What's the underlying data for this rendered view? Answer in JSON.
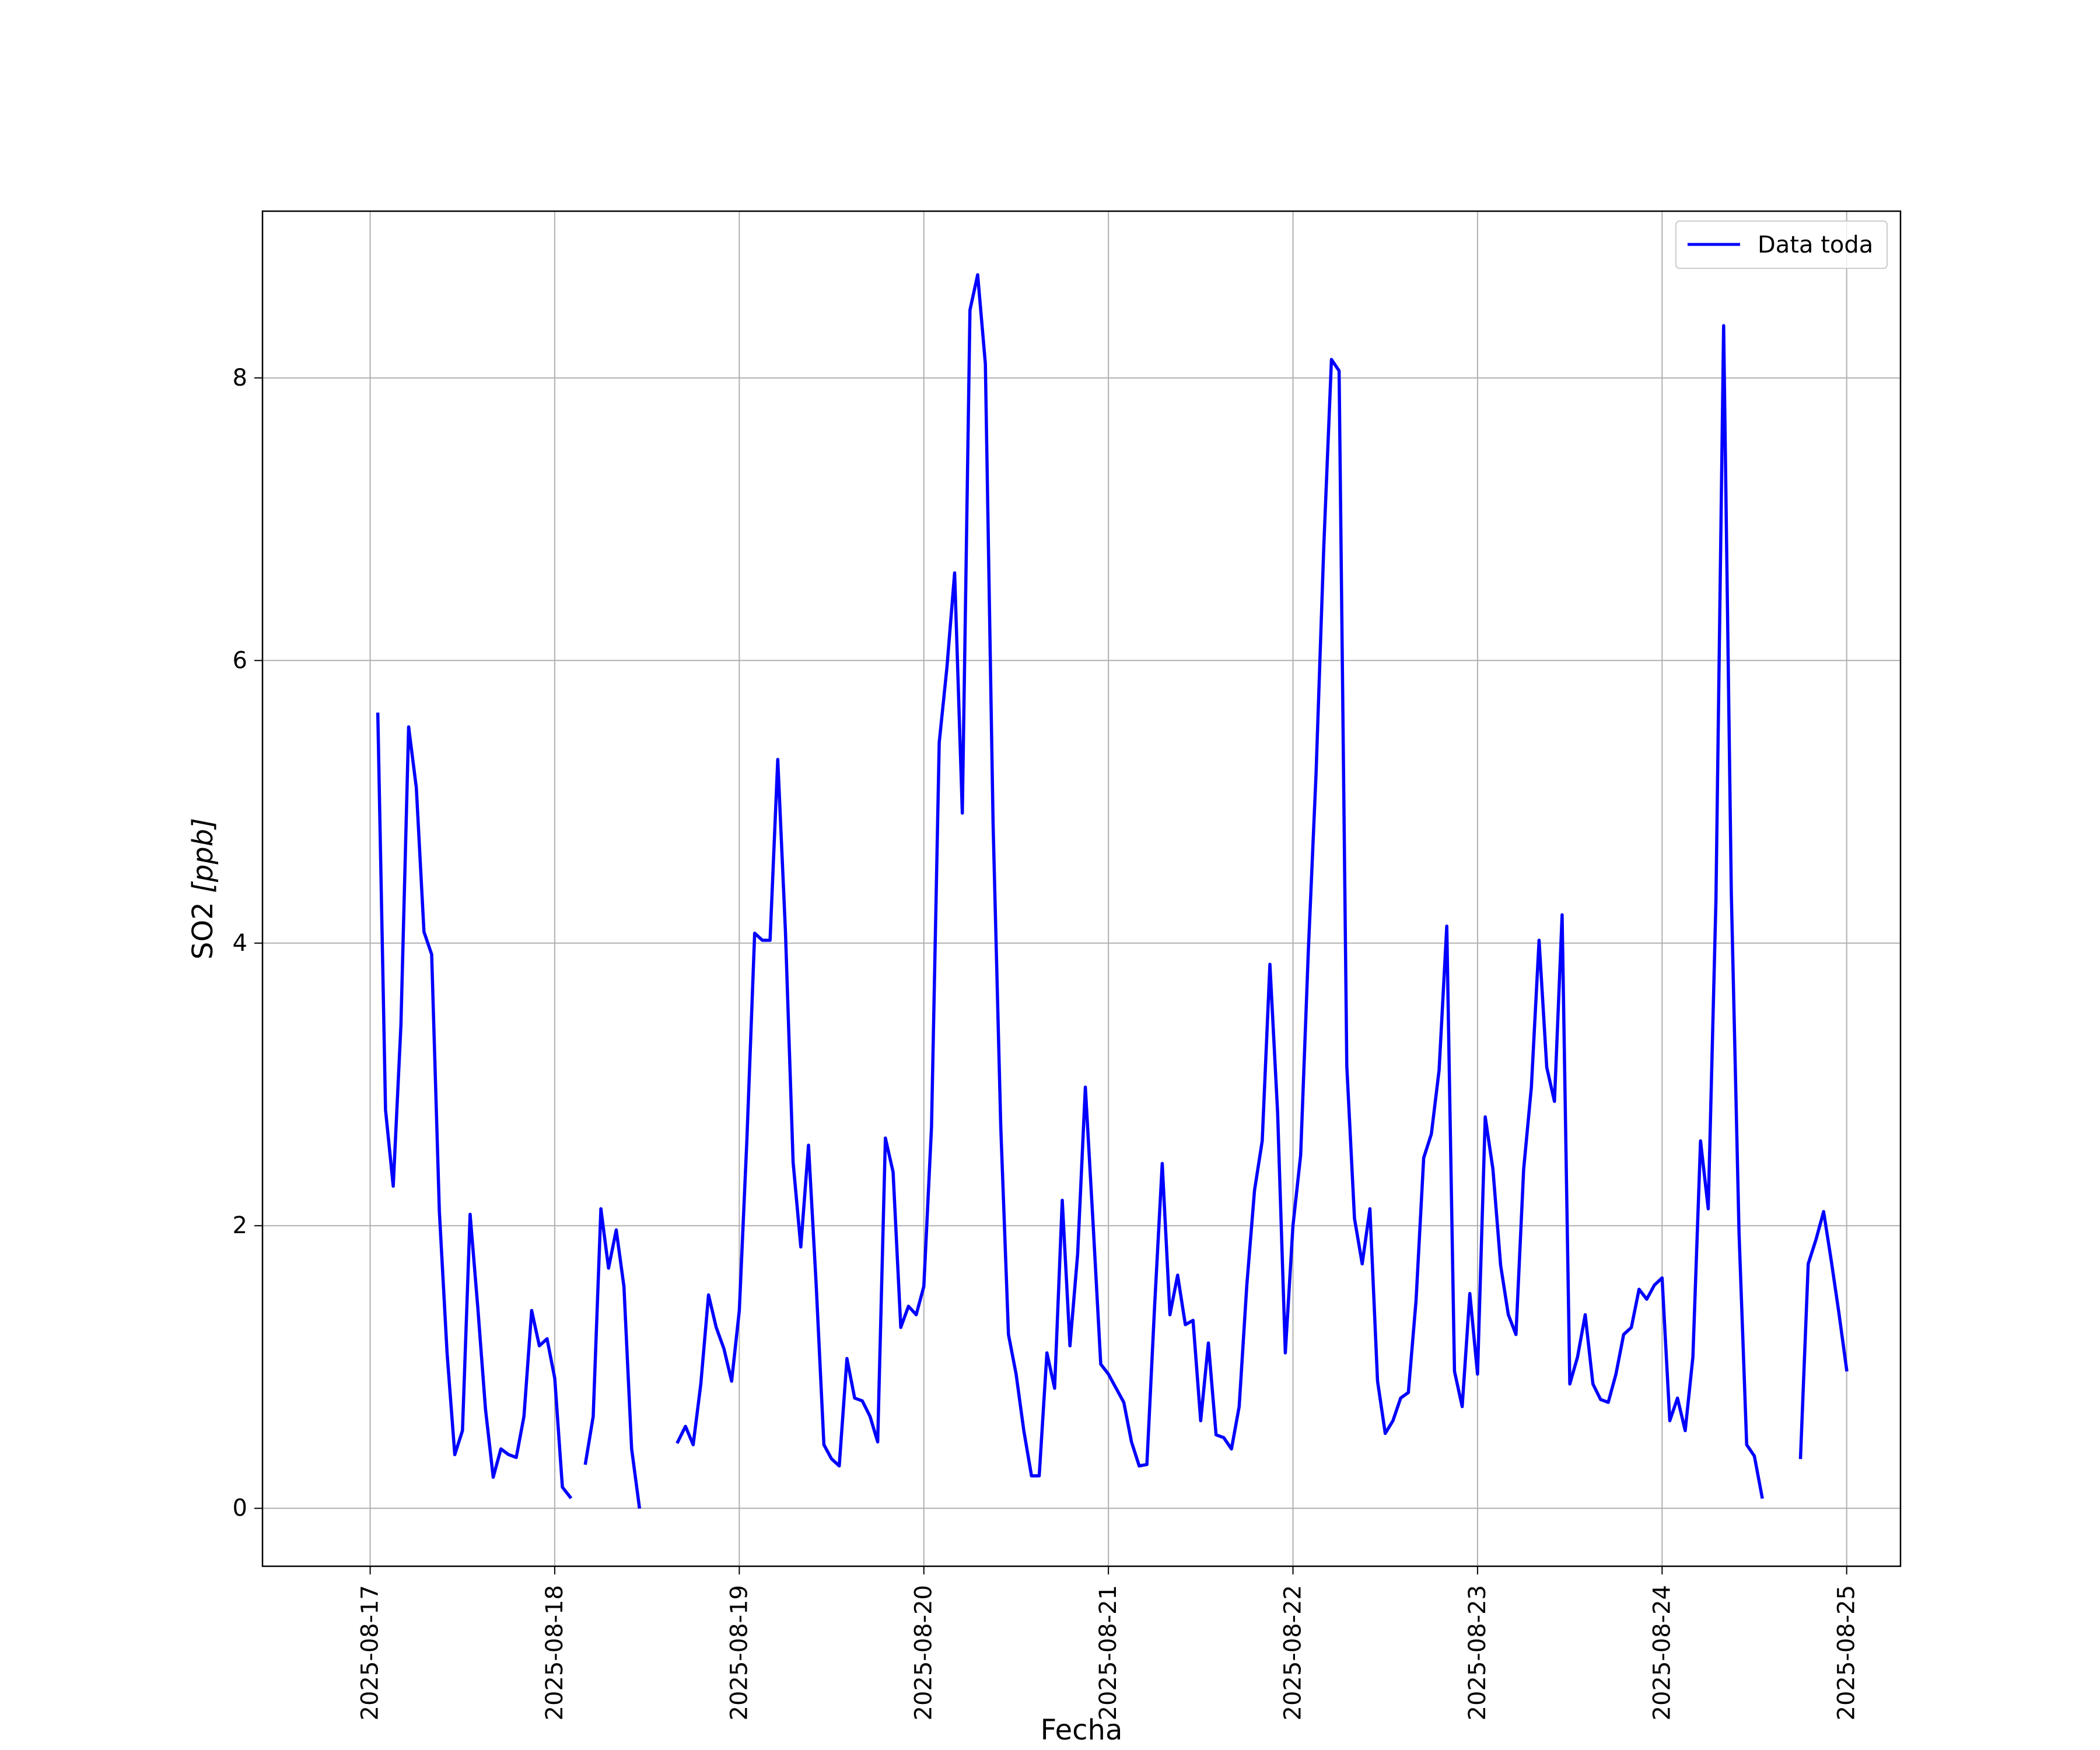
{
  "chart_data": {
    "type": "line",
    "xlabel": "Fecha",
    "ylabel_text": "SO2 ",
    "ylabel_unit": "[ppb]",
    "xlim": [
      "2025-08-16T10:00",
      "2025-08-25T07:00"
    ],
    "ylim": [
      -0.41,
      9.18
    ],
    "grid": true,
    "legend_position": "top-right",
    "x_ticks": [
      {
        "value": "2025-08-17",
        "label": "2025-08-17"
      },
      {
        "value": "2025-08-18",
        "label": "2025-08-18"
      },
      {
        "value": "2025-08-19",
        "label": "2025-08-19"
      },
      {
        "value": "2025-08-20",
        "label": "2025-08-20"
      },
      {
        "value": "2025-08-21",
        "label": "2025-08-21"
      },
      {
        "value": "2025-08-22",
        "label": "2025-08-22"
      },
      {
        "value": "2025-08-23",
        "label": "2025-08-23"
      },
      {
        "value": "2025-08-24",
        "label": "2025-08-24"
      },
      {
        "value": "2025-08-25",
        "label": "2025-08-25"
      }
    ],
    "y_ticks": [
      {
        "value": 0,
        "label": "0"
      },
      {
        "value": 2,
        "label": "2"
      },
      {
        "value": 4,
        "label": "4"
      },
      {
        "value": 6,
        "label": "6"
      },
      {
        "value": 8,
        "label": "8"
      }
    ],
    "series": [
      {
        "name": "Data toda",
        "color": "#0000ff",
        "points": [
          [
            "2025-08-17T01:00",
            5.62
          ],
          [
            "2025-08-17T02:00",
            2.82
          ],
          [
            "2025-08-17T03:00",
            2.28
          ],
          [
            "2025-08-17T04:00",
            3.42
          ],
          [
            "2025-08-17T05:00",
            5.53
          ],
          [
            "2025-08-17T06:00",
            5.1
          ],
          [
            "2025-08-17T07:00",
            4.08
          ],
          [
            "2025-08-17T08:00",
            3.92
          ],
          [
            "2025-08-17T09:00",
            2.1
          ],
          [
            "2025-08-17T10:00",
            1.1
          ],
          [
            "2025-08-17T11:00",
            0.38
          ],
          [
            "2025-08-17T12:00",
            0.55
          ],
          [
            "2025-08-17T13:00",
            2.08
          ],
          [
            "2025-08-17T14:00",
            1.42
          ],
          [
            "2025-08-17T15:00",
            0.7
          ],
          [
            "2025-08-17T16:00",
            0.22
          ],
          [
            "2025-08-17T17:00",
            0.42
          ],
          [
            "2025-08-17T18:00",
            0.38
          ],
          [
            "2025-08-17T19:00",
            0.36
          ],
          [
            "2025-08-17T20:00",
            0.65
          ],
          [
            "2025-08-17T21:00",
            1.4
          ],
          [
            "2025-08-17T22:00",
            1.15
          ],
          [
            "2025-08-17T23:00",
            1.2
          ],
          [
            "2025-08-18T00:00",
            0.92
          ],
          [
            "2025-08-18T01:00",
            0.15
          ],
          [
            "2025-08-18T02:00",
            0.08
          ],
          null,
          [
            "2025-08-18T04:00",
            0.32
          ],
          [
            "2025-08-18T05:00",
            0.65
          ],
          [
            "2025-08-18T06:00",
            2.12
          ],
          [
            "2025-08-18T07:00",
            1.7
          ],
          [
            "2025-08-18T08:00",
            1.97
          ],
          [
            "2025-08-18T09:00",
            1.57
          ],
          [
            "2025-08-18T10:00",
            0.42
          ],
          [
            "2025-08-18T11:00",
            0.01
          ],
          null,
          [
            "2025-08-18T16:00",
            0.47
          ],
          [
            "2025-08-18T17:00",
            0.58
          ],
          [
            "2025-08-18T18:00",
            0.45
          ],
          [
            "2025-08-18T19:00",
            0.88
          ],
          [
            "2025-08-18T20:00",
            1.51
          ],
          [
            "2025-08-18T21:00",
            1.28
          ],
          [
            "2025-08-18T22:00",
            1.13
          ],
          [
            "2025-08-18T23:00",
            0.9
          ],
          [
            "2025-08-19T00:00",
            1.4
          ],
          [
            "2025-08-19T01:00",
            2.62
          ],
          [
            "2025-08-19T02:00",
            4.07
          ],
          [
            "2025-08-19T03:00",
            4.02
          ],
          [
            "2025-08-19T04:00",
            4.02
          ],
          [
            "2025-08-19T05:00",
            5.3
          ],
          [
            "2025-08-19T06:00",
            4.08
          ],
          [
            "2025-08-19T07:00",
            2.45
          ],
          [
            "2025-08-19T08:00",
            1.85
          ],
          [
            "2025-08-19T09:00",
            2.57
          ],
          [
            "2025-08-19T10:00",
            1.58
          ],
          [
            "2025-08-19T11:00",
            0.45
          ],
          [
            "2025-08-19T12:00",
            0.35
          ],
          [
            "2025-08-19T13:00",
            0.3
          ],
          [
            "2025-08-19T14:00",
            1.06
          ],
          [
            "2025-08-19T15:00",
            0.78
          ],
          [
            "2025-08-19T16:00",
            0.76
          ],
          [
            "2025-08-19T17:00",
            0.65
          ],
          [
            "2025-08-19T18:00",
            0.47
          ],
          [
            "2025-08-19T19:00",
            2.62
          ],
          [
            "2025-08-19T20:00",
            2.38
          ],
          [
            "2025-08-19T21:00",
            1.28
          ],
          [
            "2025-08-19T22:00",
            1.43
          ],
          [
            "2025-08-19T23:00",
            1.37
          ],
          [
            "2025-08-20T00:00",
            1.57
          ],
          [
            "2025-08-20T01:00",
            2.7
          ],
          [
            "2025-08-20T02:00",
            5.42
          ],
          [
            "2025-08-20T03:00",
            5.95
          ],
          [
            "2025-08-20T04:00",
            6.62
          ],
          [
            "2025-08-20T05:00",
            4.92
          ],
          [
            "2025-08-20T06:00",
            8.48
          ],
          [
            "2025-08-20T07:00",
            8.73
          ],
          [
            "2025-08-20T08:00",
            8.1
          ],
          [
            "2025-08-20T09:00",
            4.85
          ],
          [
            "2025-08-20T10:00",
            2.7
          ],
          [
            "2025-08-20T11:00",
            1.23
          ],
          [
            "2025-08-20T12:00",
            0.95
          ],
          [
            "2025-08-20T13:00",
            0.55
          ],
          [
            "2025-08-20T14:00",
            0.23
          ],
          [
            "2025-08-20T15:00",
            0.23
          ],
          [
            "2025-08-20T16:00",
            1.1
          ],
          [
            "2025-08-20T17:00",
            0.85
          ],
          [
            "2025-08-20T18:00",
            2.18
          ],
          [
            "2025-08-20T19:00",
            1.15
          ],
          [
            "2025-08-20T20:00",
            1.8
          ],
          [
            "2025-08-20T21:00",
            2.98
          ],
          [
            "2025-08-20T22:00",
            2.02
          ],
          [
            "2025-08-20T23:00",
            1.02
          ],
          [
            "2025-08-21T00:00",
            0.95
          ],
          [
            "2025-08-21T01:00",
            0.85
          ],
          [
            "2025-08-21T02:00",
            0.75
          ],
          [
            "2025-08-21T03:00",
            0.47
          ],
          [
            "2025-08-21T04:00",
            0.3
          ],
          [
            "2025-08-21T05:00",
            0.31
          ],
          [
            "2025-08-21T06:00",
            1.42
          ],
          [
            "2025-08-21T07:00",
            2.44
          ],
          [
            "2025-08-21T08:00",
            1.37
          ],
          [
            "2025-08-21T09:00",
            1.65
          ],
          [
            "2025-08-21T10:00",
            1.3
          ],
          [
            "2025-08-21T11:00",
            1.33
          ],
          [
            "2025-08-21T12:00",
            0.62
          ],
          [
            "2025-08-21T13:00",
            1.17
          ],
          [
            "2025-08-21T14:00",
            0.52
          ],
          [
            "2025-08-21T15:00",
            0.5
          ],
          [
            "2025-08-21T16:00",
            0.42
          ],
          [
            "2025-08-21T17:00",
            0.72
          ],
          [
            "2025-08-21T18:00",
            1.58
          ],
          [
            "2025-08-21T19:00",
            2.25
          ],
          [
            "2025-08-21T20:00",
            2.6
          ],
          [
            "2025-08-21T21:00",
            3.85
          ],
          [
            "2025-08-21T22:00",
            2.8
          ],
          [
            "2025-08-21T23:00",
            1.1
          ],
          [
            "2025-08-22T00:00",
            2.0
          ],
          [
            "2025-08-22T01:00",
            2.5
          ],
          [
            "2025-08-22T02:00",
            3.95
          ],
          [
            "2025-08-22T03:00",
            5.2
          ],
          [
            "2025-08-22T04:00",
            6.8
          ],
          [
            "2025-08-22T05:00",
            8.13
          ],
          [
            "2025-08-22T06:00",
            8.05
          ],
          [
            "2025-08-22T07:00",
            3.13
          ],
          [
            "2025-08-22T08:00",
            2.05
          ],
          [
            "2025-08-22T09:00",
            1.73
          ],
          [
            "2025-08-22T10:00",
            2.12
          ],
          [
            "2025-08-22T11:00",
            0.9
          ],
          [
            "2025-08-22T12:00",
            0.53
          ],
          [
            "2025-08-22T13:00",
            0.62
          ],
          [
            "2025-08-22T14:00",
            0.78
          ],
          [
            "2025-08-22T15:00",
            0.82
          ],
          [
            "2025-08-22T16:00",
            1.47
          ],
          [
            "2025-08-22T17:00",
            2.48
          ],
          [
            "2025-08-22T18:00",
            2.65
          ],
          [
            "2025-08-22T19:00",
            3.1
          ],
          [
            "2025-08-22T20:00",
            4.12
          ],
          [
            "2025-08-22T21:00",
            0.97
          ],
          [
            "2025-08-22T22:00",
            0.72
          ],
          [
            "2025-08-22T23:00",
            1.52
          ],
          [
            "2025-08-23T00:00",
            0.95
          ],
          [
            "2025-08-23T01:00",
            2.77
          ],
          [
            "2025-08-23T02:00",
            2.4
          ],
          [
            "2025-08-23T03:00",
            1.72
          ],
          [
            "2025-08-23T04:00",
            1.37
          ],
          [
            "2025-08-23T05:00",
            1.23
          ],
          [
            "2025-08-23T06:00",
            2.4
          ],
          [
            "2025-08-23T07:00",
            2.98
          ],
          [
            "2025-08-23T08:00",
            4.02
          ],
          [
            "2025-08-23T09:00",
            3.12
          ],
          [
            "2025-08-23T10:00",
            2.88
          ],
          [
            "2025-08-23T11:00",
            4.2
          ],
          [
            "2025-08-23T12:00",
            0.88
          ],
          [
            "2025-08-23T13:00",
            1.07
          ],
          [
            "2025-08-23T14:00",
            1.37
          ],
          [
            "2025-08-23T15:00",
            0.88
          ],
          [
            "2025-08-23T16:00",
            0.77
          ],
          [
            "2025-08-23T17:00",
            0.75
          ],
          [
            "2025-08-23T18:00",
            0.95
          ],
          [
            "2025-08-23T19:00",
            1.23
          ],
          [
            "2025-08-23T20:00",
            1.28
          ],
          [
            "2025-08-23T21:00",
            1.55
          ],
          [
            "2025-08-23T22:00",
            1.48
          ],
          [
            "2025-08-23T23:00",
            1.58
          ],
          [
            "2025-08-24T00:00",
            1.63
          ],
          [
            "2025-08-24T01:00",
            0.62
          ],
          [
            "2025-08-24T02:00",
            0.78
          ],
          [
            "2025-08-24T03:00",
            0.55
          ],
          [
            "2025-08-24T04:00",
            1.07
          ],
          [
            "2025-08-24T05:00",
            2.6
          ],
          [
            "2025-08-24T06:00",
            2.12
          ],
          [
            "2025-08-24T07:00",
            4.3
          ],
          [
            "2025-08-24T08:00",
            8.37
          ],
          [
            "2025-08-24T09:00",
            4.35
          ],
          [
            "2025-08-24T10:00",
            1.95
          ],
          [
            "2025-08-24T11:00",
            0.45
          ],
          [
            "2025-08-24T12:00",
            0.37
          ],
          [
            "2025-08-24T13:00",
            0.08
          ],
          null,
          [
            "2025-08-24T18:00",
            0.36
          ],
          [
            "2025-08-24T19:00",
            1.73
          ],
          [
            "2025-08-24T20:00",
            1.9
          ],
          [
            "2025-08-24T21:00",
            2.1
          ],
          [
            "2025-08-24T22:00",
            1.75
          ],
          [
            "2025-08-24T23:00",
            1.38
          ],
          [
            "2025-08-25T00:00",
            0.98
          ]
        ]
      }
    ]
  }
}
